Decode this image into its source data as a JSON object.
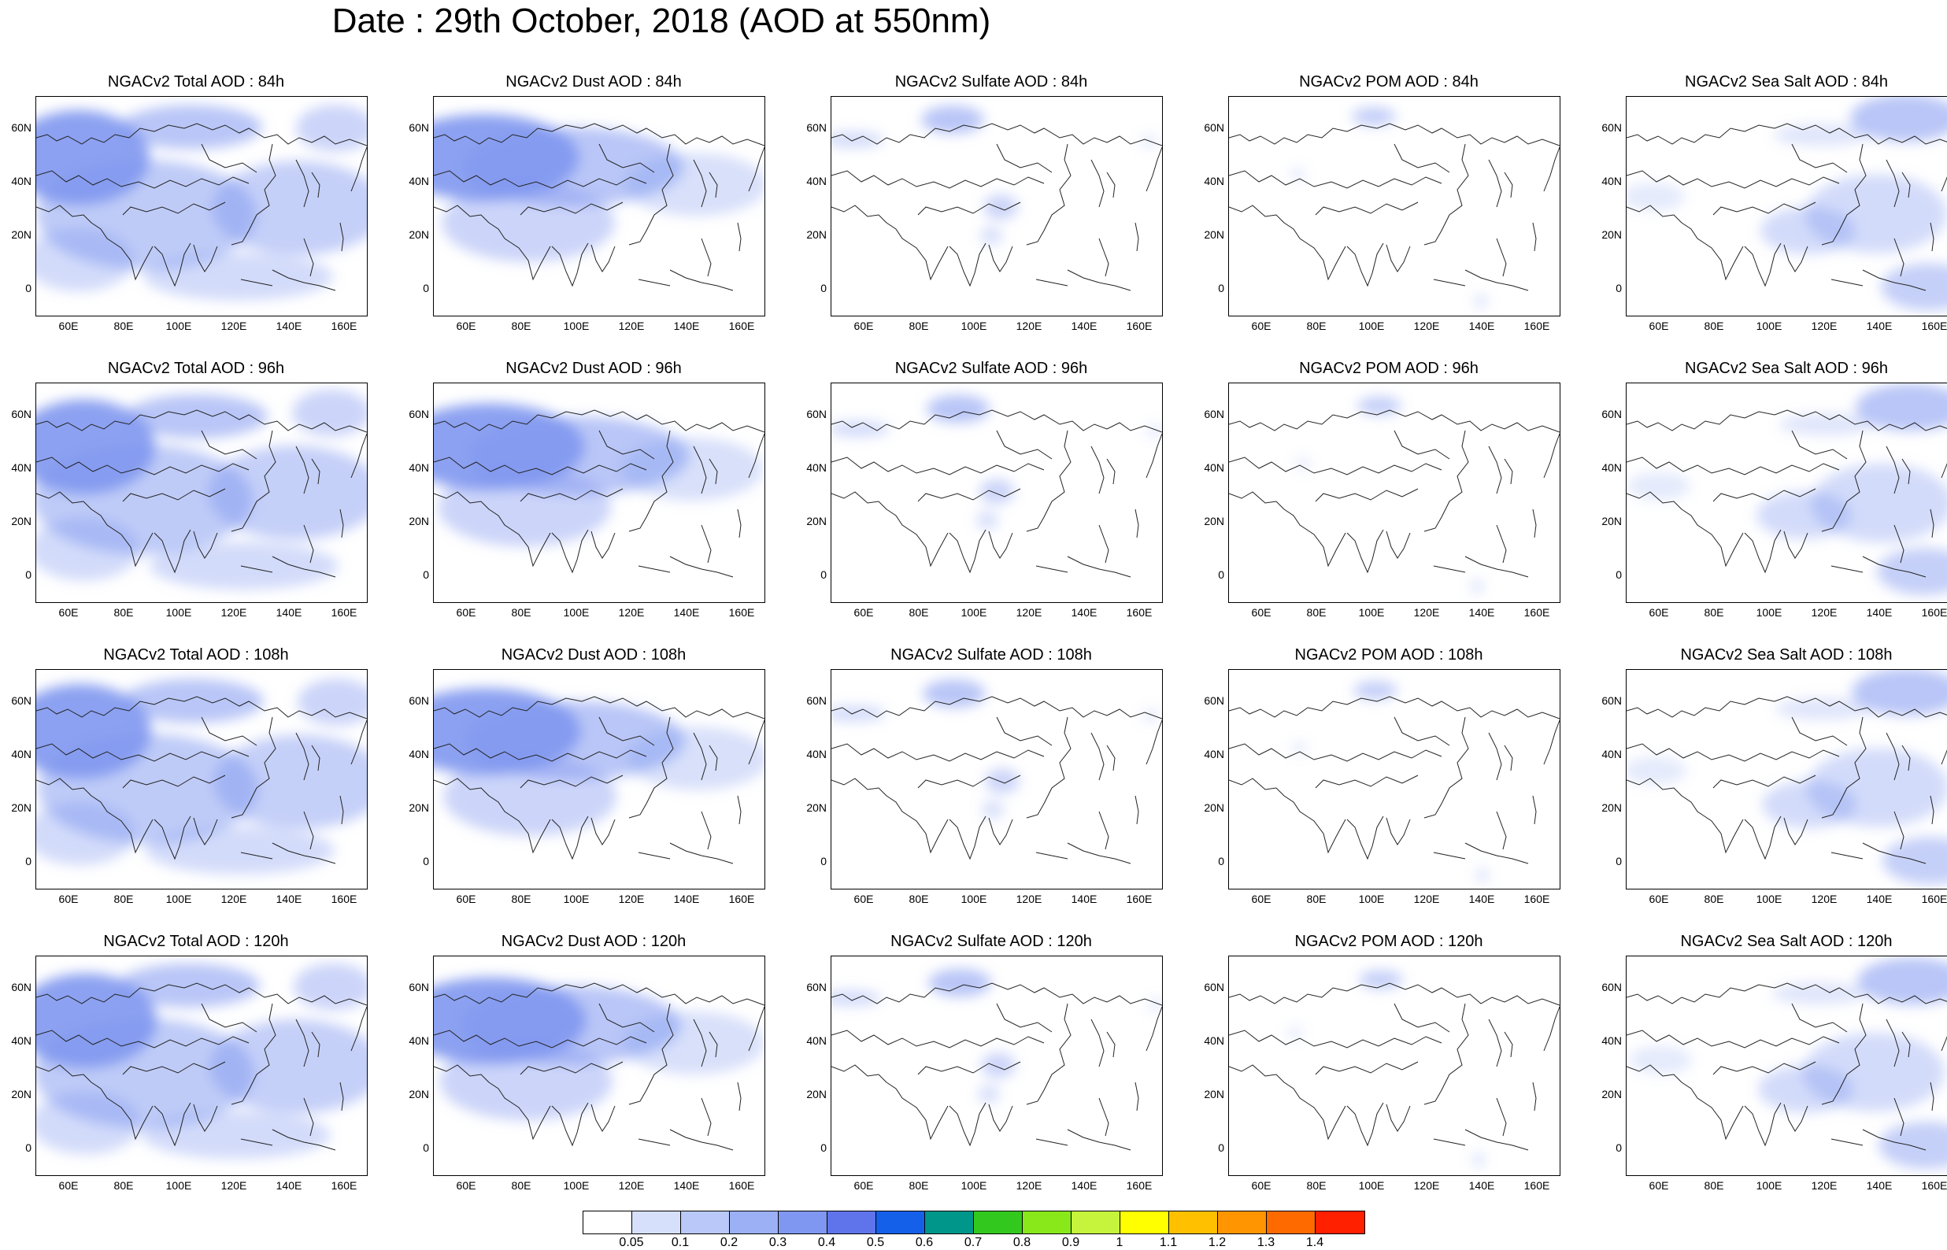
{
  "title": "Date : 29th October, 2018 (AOD at 550nm)",
  "axes": {
    "lat_ticks": [
      "60N",
      "40N",
      "20N",
      "0"
    ],
    "lon_ticks": [
      "60E",
      "80E",
      "100E",
      "120E",
      "140E",
      "160E"
    ]
  },
  "rows": [
    {
      "panels": [
        "NGACv2 Total AOD : 84h",
        "NGACv2 Dust AOD : 84h",
        "NGACv2 Sulfate AOD : 84h",
        "NGACv2 POM AOD : 84h",
        "NGACv2 Sea Salt AOD : 84h"
      ]
    },
    {
      "panels": [
        "NGACv2 Total AOD : 96h",
        "NGACv2 Dust AOD : 96h",
        "NGACv2 Sulfate AOD : 96h",
        "NGACv2 POM AOD : 96h",
        "NGACv2 Sea Salt AOD : 96h"
      ]
    },
    {
      "panels": [
        "NGACv2 Total AOD : 108h",
        "NGACv2 Dust AOD : 108h",
        "NGACv2 Sulfate AOD : 108h",
        "NGACv2 POM AOD : 108h",
        "NGACv2 Sea Salt AOD : 108h"
      ]
    },
    {
      "panels": [
        "NGACv2 Total AOD : 120h",
        "NGACv2 Dust AOD : 120h",
        "NGACv2 Sulfate AOD : 120h",
        "NGACv2 POM AOD : 120h",
        "NGACv2 Sea Salt  AOD : 120h"
      ]
    }
  ],
  "colorbar": {
    "labels": [
      "0.05",
      "0.1",
      "0.2",
      "0.3",
      "0.4",
      "0.5",
      "0.6",
      "0.7",
      "0.8",
      "0.9",
      "1",
      "1.1",
      "1.2",
      "1.3",
      "1.4"
    ],
    "colors": [
      "#ffffff",
      "#d6e0fb",
      "#b9c8f8",
      "#9bb0f5",
      "#7f97f0",
      "#5f74ea",
      "#1560e8",
      "#00968a",
      "#33c81e",
      "#88e81a",
      "#c6f43c",
      "#ffff00",
      "#ffc000",
      "#ff9500",
      "#ff6a00",
      "#ff2000"
    ]
  }
}
